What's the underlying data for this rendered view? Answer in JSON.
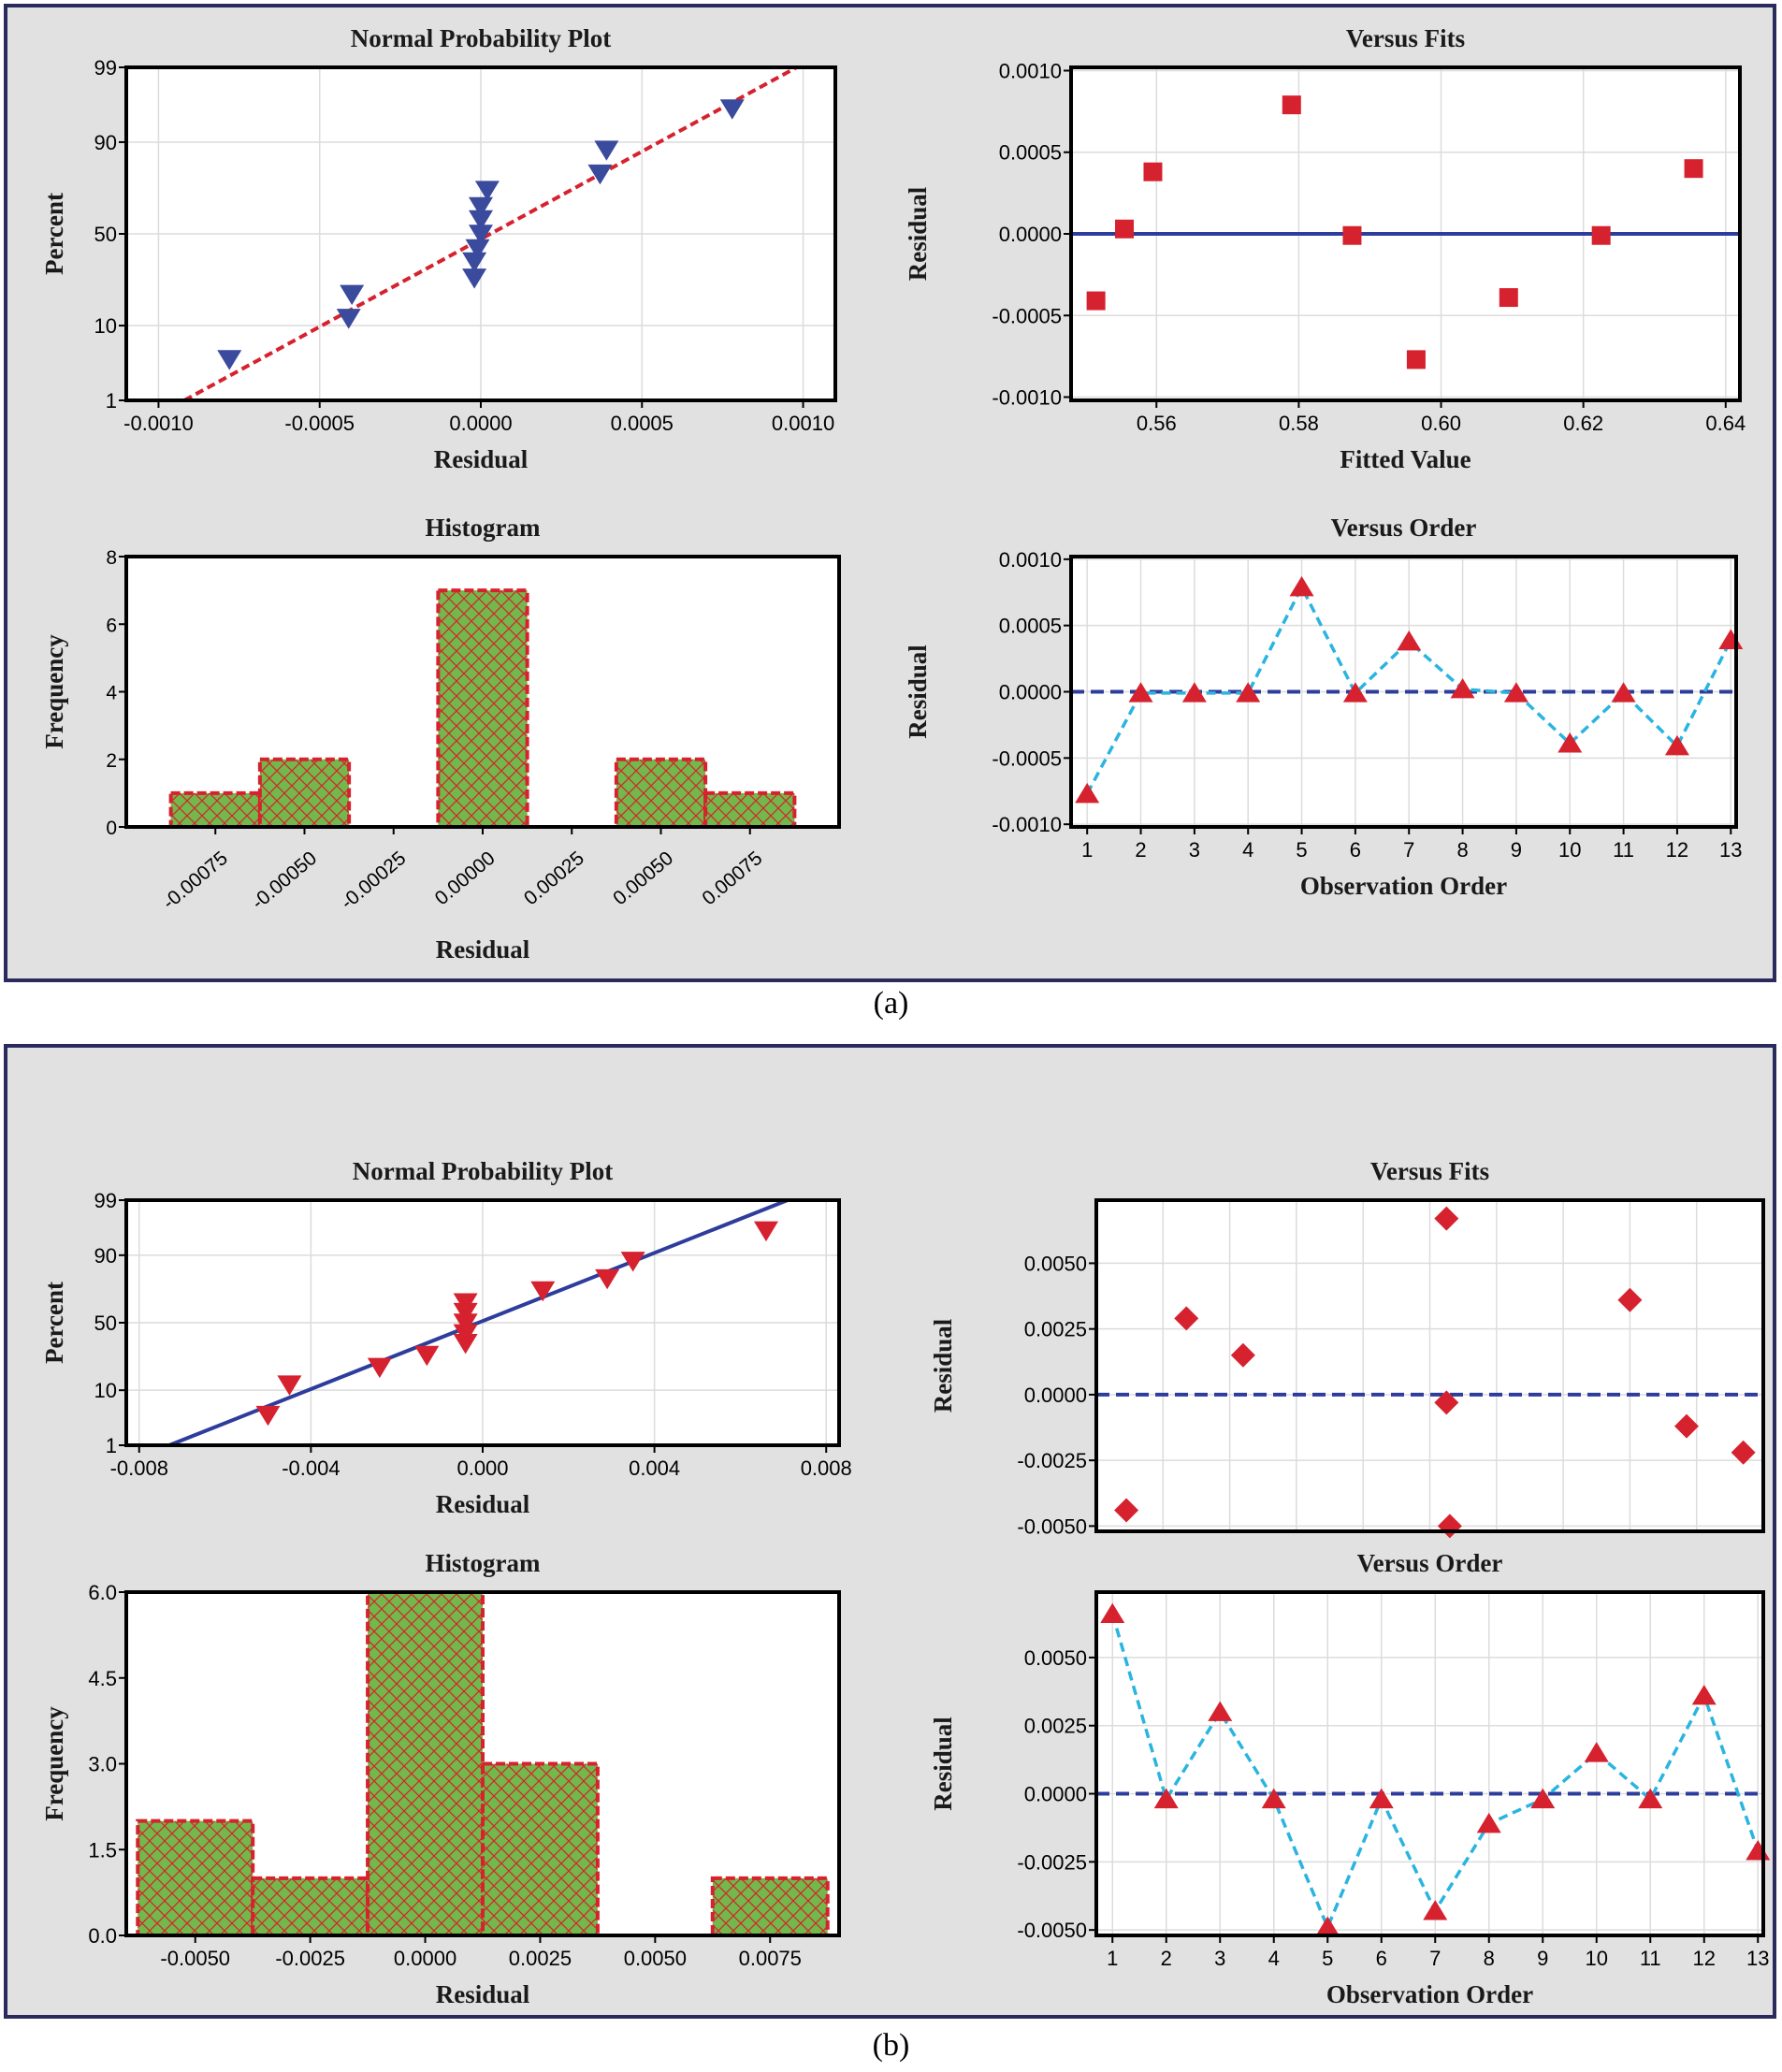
{
  "panels": [
    {
      "label": "(a)"
    },
    {
      "label": "(b)"
    }
  ],
  "colors": {
    "panel_bg": "#e1e1e1",
    "panel_border": "#2b2a5c",
    "plot_bg": "#ffffff",
    "grid": "#dcdcdc",
    "blue_marker": "#3a4a9c",
    "red_marker": "#d6222e",
    "red_dash": "#d6222e",
    "blue_line": "#2e3d9c",
    "cyan_line": "#2ab4e0",
    "hist_fill": "#72b84a"
  },
  "chart_data": [
    {
      "id": "a_npp",
      "type": "scatter",
      "panel": "a",
      "title": "Normal Probability Plot",
      "xlabel": "Residual",
      "ylabel": "Percent",
      "xlim": [
        -0.0011,
        0.0011
      ],
      "xticks": [
        -0.001,
        -0.0005,
        0.0,
        0.0005,
        0.001
      ],
      "xtick_labels": [
        "-0.0010",
        "-0.0005",
        "0.0000",
        "0.0005",
        "0.0010"
      ],
      "ylim_percent": [
        1,
        99
      ],
      "yticks": [
        1,
        10,
        50,
        90,
        99
      ],
      "ytick_labels": [
        "1",
        "10",
        "50",
        "90",
        "99"
      ],
      "marker": "triangle-down",
      "marker_color": "blue_marker",
      "fit_line": {
        "x": [
          -0.00092,
          0.00098
        ],
        "percent": [
          1,
          99
        ],
        "style": "dashed",
        "color": "red_dash"
      },
      "points": [
        {
          "x": -0.00078,
          "p": 4
        },
        {
          "x": -0.00041,
          "p": 12
        },
        {
          "x": -0.0004,
          "p": 20
        },
        {
          "x": -2e-05,
          "p": 27
        },
        {
          "x": -2e-05,
          "p": 35
        },
        {
          "x": -1e-05,
          "p": 42
        },
        {
          "x": 0.0,
          "p": 50
        },
        {
          "x": 0.0,
          "p": 58
        },
        {
          "x": 0.0,
          "p": 65
        },
        {
          "x": 2e-05,
          "p": 73
        },
        {
          "x": 0.00037,
          "p": 80
        },
        {
          "x": 0.00039,
          "p": 88
        },
        {
          "x": 0.00078,
          "p": 96
        }
      ]
    },
    {
      "id": "a_fits",
      "type": "scatter",
      "panel": "a",
      "title": "Versus Fits",
      "xlabel": "Fitted Value",
      "ylabel": "Residual",
      "xlim": [
        0.548,
        0.642
      ],
      "xticks": [
        0.56,
        0.58,
        0.6,
        0.62,
        0.64
      ],
      "xtick_labels": [
        "0.56",
        "0.58",
        "0.60",
        "0.62",
        "0.64"
      ],
      "ylim": [
        -0.00102,
        0.00102
      ],
      "yticks": [
        -0.001,
        -0.0005,
        0.0,
        0.0005,
        0.001
      ],
      "ytick_labels": [
        "-0.0010",
        "-0.0005",
        "0.0000",
        "0.0005",
        "0.0010"
      ],
      "marker": "square",
      "marker_color": "red_marker",
      "ref_line": {
        "y": 0.0,
        "style": "solid",
        "color": "blue_line"
      },
      "points": [
        {
          "x": 0.5515,
          "y": -0.00041
        },
        {
          "x": 0.5555,
          "y": 3e-05
        },
        {
          "x": 0.5595,
          "y": 0.00038
        },
        {
          "x": 0.579,
          "y": 0.00079
        },
        {
          "x": 0.5875,
          "y": -1e-05
        },
        {
          "x": 0.5965,
          "y": -0.00077
        },
        {
          "x": 0.6095,
          "y": -0.00039
        },
        {
          "x": 0.6225,
          "y": -1e-05
        },
        {
          "x": 0.6355,
          "y": 0.0004
        }
      ]
    },
    {
      "id": "a_hist",
      "type": "bar",
      "panel": "a",
      "title": "Histogram",
      "xlabel": "Residual",
      "ylabel": "Frequency",
      "ylim": [
        0,
        8
      ],
      "yticks": [
        0,
        2,
        4,
        6,
        8
      ],
      "ytick_labels": [
        "0",
        "2",
        "4",
        "6",
        "8"
      ],
      "xlim": [
        -0.001,
        0.001
      ],
      "bin_width": 0.00025,
      "bin_centers": [
        -0.00075,
        -0.0005,
        -0.00025,
        0.0,
        0.00025,
        0.0005,
        0.00075
      ],
      "values": [
        1,
        2,
        0,
        7,
        0,
        2,
        1
      ],
      "tick_labels": [
        "-0.00075",
        "-0.00050",
        "-0.00025",
        "0.00000",
        "0.00025",
        "0.00050",
        "0.00075"
      ],
      "tick_rotation": -40
    },
    {
      "id": "a_order",
      "type": "line",
      "panel": "a",
      "title": "Versus Order",
      "xlabel": "Observation Order",
      "ylabel": "Residual",
      "xlim": [
        0.7,
        13.1
      ],
      "x": [
        1,
        2,
        3,
        4,
        5,
        6,
        7,
        8,
        9,
        10,
        11,
        12,
        13
      ],
      "xtick_labels": [
        "1",
        "2",
        "3",
        "4",
        "5",
        "6",
        "7",
        "8",
        "9",
        "10",
        "11",
        "12",
        "13"
      ],
      "ylim": [
        -0.00102,
        0.00102
      ],
      "yticks": [
        -0.001,
        -0.0005,
        0.0,
        0.0005,
        0.001
      ],
      "ytick_labels": [
        "-0.0010",
        "-0.0005",
        "0.0000",
        "0.0005",
        "0.0010"
      ],
      "marker": "triangle-up",
      "marker_color": "red_marker",
      "line_color": "cyan_line",
      "ref_line": {
        "y": 0.0,
        "style": "dashed",
        "color": "blue_line"
      },
      "values": [
        -0.00077,
        -1e-05,
        -1e-05,
        -1e-05,
        0.00079,
        -1e-05,
        0.00038,
        2e-05,
        -1e-05,
        -0.00039,
        -1e-05,
        -0.00041,
        0.00039
      ]
    },
    {
      "id": "b_npp",
      "type": "scatter",
      "panel": "b",
      "title": "Normal Probability Plot",
      "xlabel": "Residual",
      "ylabel": "Percent",
      "xlim": [
        -0.0083,
        0.0083
      ],
      "xticks": [
        -0.008,
        -0.004,
        0.0,
        0.004,
        0.008
      ],
      "xtick_labels": [
        "-0.008",
        "-0.004",
        "0.000",
        "0.004",
        "0.008"
      ],
      "ylim_percent": [
        1,
        99
      ],
      "yticks": [
        1,
        10,
        50,
        90,
        99
      ],
      "ytick_labels": [
        "1",
        "10",
        "50",
        "90",
        "99"
      ],
      "marker": "triangle-down",
      "marker_color": "red_marker",
      "fit_line": {
        "x": [
          -0.0073,
          0.0071
        ],
        "percent": [
          1,
          99
        ],
        "style": "solid",
        "color": "blue_line"
      },
      "points": [
        {
          "x": -0.005,
          "p": 4
        },
        {
          "x": -0.0045,
          "p": 12
        },
        {
          "x": -0.0024,
          "p": 20
        },
        {
          "x": -0.0013,
          "p": 27
        },
        {
          "x": -0.0004,
          "p": 35
        },
        {
          "x": -0.0004,
          "p": 42
        },
        {
          "x": -0.0004,
          "p": 50
        },
        {
          "x": -0.0004,
          "p": 58
        },
        {
          "x": -0.0004,
          "p": 65
        },
        {
          "x": 0.0014,
          "p": 73
        },
        {
          "x": 0.0029,
          "p": 80
        },
        {
          "x": 0.0035,
          "p": 88
        },
        {
          "x": 0.0066,
          "p": 96
        }
      ]
    },
    {
      "id": "b_fits",
      "type": "scatter",
      "panel": "b",
      "title": "Versus Fits",
      "xlabel": "",
      "ylabel": "Residual",
      "xlim": [
        0,
        10
      ],
      "xticks": [],
      "xtick_labels": [],
      "ylim": [
        -0.0052,
        0.0074
      ],
      "yticks": [
        -0.005,
        -0.0025,
        0.0,
        0.0025,
        0.005
      ],
      "ytick_labels": [
        "-0.0050",
        "-0.0025",
        "0.0000",
        "0.0025",
        "0.0050"
      ],
      "marker": "diamond",
      "marker_color": "red_marker",
      "ref_line": {
        "y": 0.0,
        "style": "dashed",
        "color": "blue_line"
      },
      "points": [
        {
          "x": 0.45,
          "y": -0.0044
        },
        {
          "x": 1.35,
          "y": 0.0029
        },
        {
          "x": 2.2,
          "y": 0.0015
        },
        {
          "x": 5.25,
          "y": 0.0067
        },
        {
          "x": 5.25,
          "y": -0.0003
        },
        {
          "x": 5.3,
          "y": -0.005
        },
        {
          "x": 8.0,
          "y": 0.0036
        },
        {
          "x": 8.85,
          "y": -0.0012
        },
        {
          "x": 9.7,
          "y": -0.0022
        }
      ]
    },
    {
      "id": "b_hist",
      "type": "bar",
      "panel": "b",
      "title": "Histogram",
      "xlabel": "Residual",
      "ylabel": "Frequency",
      "ylim": [
        0,
        6
      ],
      "yticks": [
        0,
        1.5,
        3,
        4.5,
        6
      ],
      "ytick_labels": [
        "0.0",
        "1.5",
        "3.0",
        "4.5",
        "6.0"
      ],
      "xlim": [
        -0.0065,
        0.009
      ],
      "bin_width": 0.0025,
      "bin_centers": [
        -0.005,
        -0.0025,
        0.0,
        0.0025,
        0.005,
        0.0075
      ],
      "values": [
        2,
        1,
        6,
        3,
        0,
        1
      ],
      "tick_labels": [
        "-0.0050",
        "-0.0025",
        "0.0000",
        "0.0025",
        "0.0050",
        "0.0075"
      ],
      "tick_rotation": 0
    },
    {
      "id": "b_order",
      "type": "line",
      "panel": "b",
      "title": "Versus Order",
      "xlabel": "Observation Order",
      "ylabel": "Residual",
      "xlim": [
        0.7,
        13.1
      ],
      "x": [
        1,
        2,
        3,
        4,
        5,
        6,
        7,
        8,
        9,
        10,
        11,
        12,
        13
      ],
      "xtick_labels": [
        "1",
        "2",
        "3",
        "4",
        "5",
        "6",
        "7",
        "8",
        "9",
        "10",
        "11",
        "12",
        "13"
      ],
      "ylim": [
        -0.0052,
        0.0074
      ],
      "yticks": [
        -0.005,
        -0.0025,
        0.0,
        0.0025,
        0.005
      ],
      "ytick_labels": [
        "-0.0050",
        "-0.0025",
        "0.0000",
        "0.0025",
        "0.0050"
      ],
      "marker": "triangle-up",
      "marker_color": "red_marker",
      "line_color": "cyan_line",
      "ref_line": {
        "y": 0.0,
        "style": "dashed",
        "color": "blue_line"
      },
      "values": [
        0.0066,
        -0.0002,
        0.003,
        -0.0002,
        -0.0049,
        -0.0002,
        -0.0043,
        -0.0011,
        -0.0002,
        0.0015,
        -0.0002,
        0.0036,
        -0.0021
      ]
    }
  ]
}
